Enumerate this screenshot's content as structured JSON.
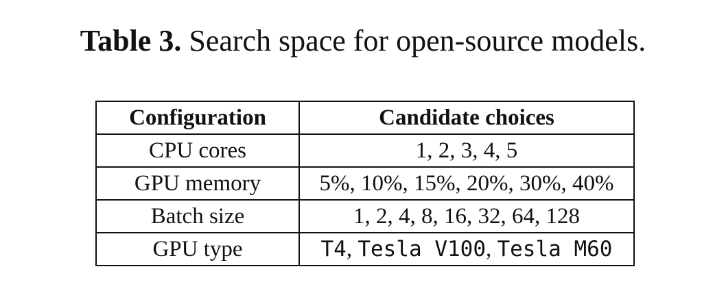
{
  "caption": {
    "label": "Table 3.",
    "text": "Search space for open-source models."
  },
  "table": {
    "headers": [
      "Configuration",
      "Candidate choices"
    ],
    "rows": [
      {
        "config": "CPU cores",
        "choices": "1, 2, 3, 4, 5"
      },
      {
        "config": "GPU memory",
        "choices": "5%, 10%, 15%, 20%, 30%, 40%"
      },
      {
        "config": "Batch size",
        "choices": "1, 2, 4, 8, 16, 32, 64, 128"
      },
      {
        "config": "GPU type",
        "choices_parts": [
          "T4",
          "Tesla V100",
          "Tesla M60"
        ]
      }
    ]
  }
}
